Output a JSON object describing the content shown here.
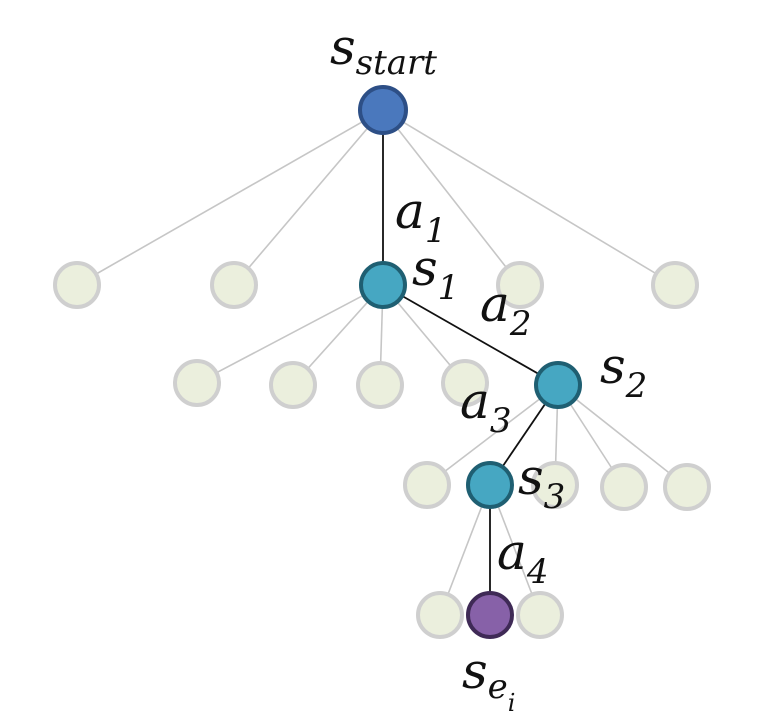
{
  "root": {
    "label": "s",
    "sub": "start"
  },
  "path_states": [
    {
      "label": "s",
      "sub": "1"
    },
    {
      "label": "s",
      "sub": "2"
    },
    {
      "label": "s",
      "sub": "3"
    }
  ],
  "actions": [
    {
      "label": "a",
      "sub": "1"
    },
    {
      "label": "a",
      "sub": "2"
    },
    {
      "label": "a",
      "sub": "3"
    },
    {
      "label": "a",
      "sub": "4"
    }
  ],
  "end_state": {
    "label": "s",
    "sub": "e",
    "subsub": "i"
  },
  "colors": {
    "root": "#4a78bd",
    "path": "#46a7c2",
    "end": "#8761a8",
    "unexplored": "#ebefdd",
    "edge_inactive": "#c6c6c6",
    "edge_path": "#111111"
  }
}
